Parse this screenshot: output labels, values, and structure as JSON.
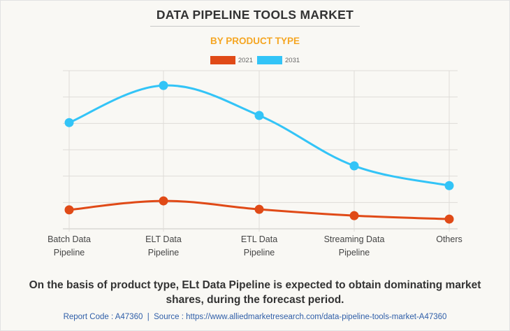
{
  "header": {
    "title": "DATA PIPELINE TOOLS MARKET",
    "subtitle": "BY PRODUCT TYPE"
  },
  "colors": {
    "series_2021": "#e04a17",
    "series_2031": "#33c4f7",
    "subtitle": "#f5a623",
    "grid": "#dedcd8"
  },
  "chart_data": {
    "type": "line",
    "title": "DATA PIPELINE TOOLS MARKET",
    "subtitle": "BY PRODUCT TYPE",
    "xlabel": "",
    "ylabel": "",
    "y_tick_labels_shown": false,
    "value_units": "relative index (no y-axis labels shown; 1 unit = 1 gridline interval)",
    "ylim": [
      0,
      6
    ],
    "grid": true,
    "legend_position": "top-center",
    "categories": [
      [
        "Batch Data",
        "Pipeline"
      ],
      [
        "ELT Data",
        "Pipeline"
      ],
      [
        "ETL Data",
        "Pipeline"
      ],
      [
        "Streaming Data",
        "Pipeline"
      ],
      [
        "Others"
      ]
    ],
    "series": [
      {
        "name": "2021",
        "color": "#e04a17",
        "values": [
          0.72,
          1.06,
          0.74,
          0.5,
          0.37
        ]
      },
      {
        "name": "2031",
        "color": "#33c4f7",
        "values": [
          4.03,
          5.44,
          4.3,
          2.39,
          1.64
        ]
      }
    ]
  },
  "footer": {
    "caption_line1": "On the basis of product type, ELt Data Pipeline is expected to obtain dominating market",
    "caption_line2": "shares, during the forecast period.",
    "source": "Report Code : A47360  |  Source : https://www.alliedmarketresearch.com/data-pipeline-tools-market-A47360"
  }
}
